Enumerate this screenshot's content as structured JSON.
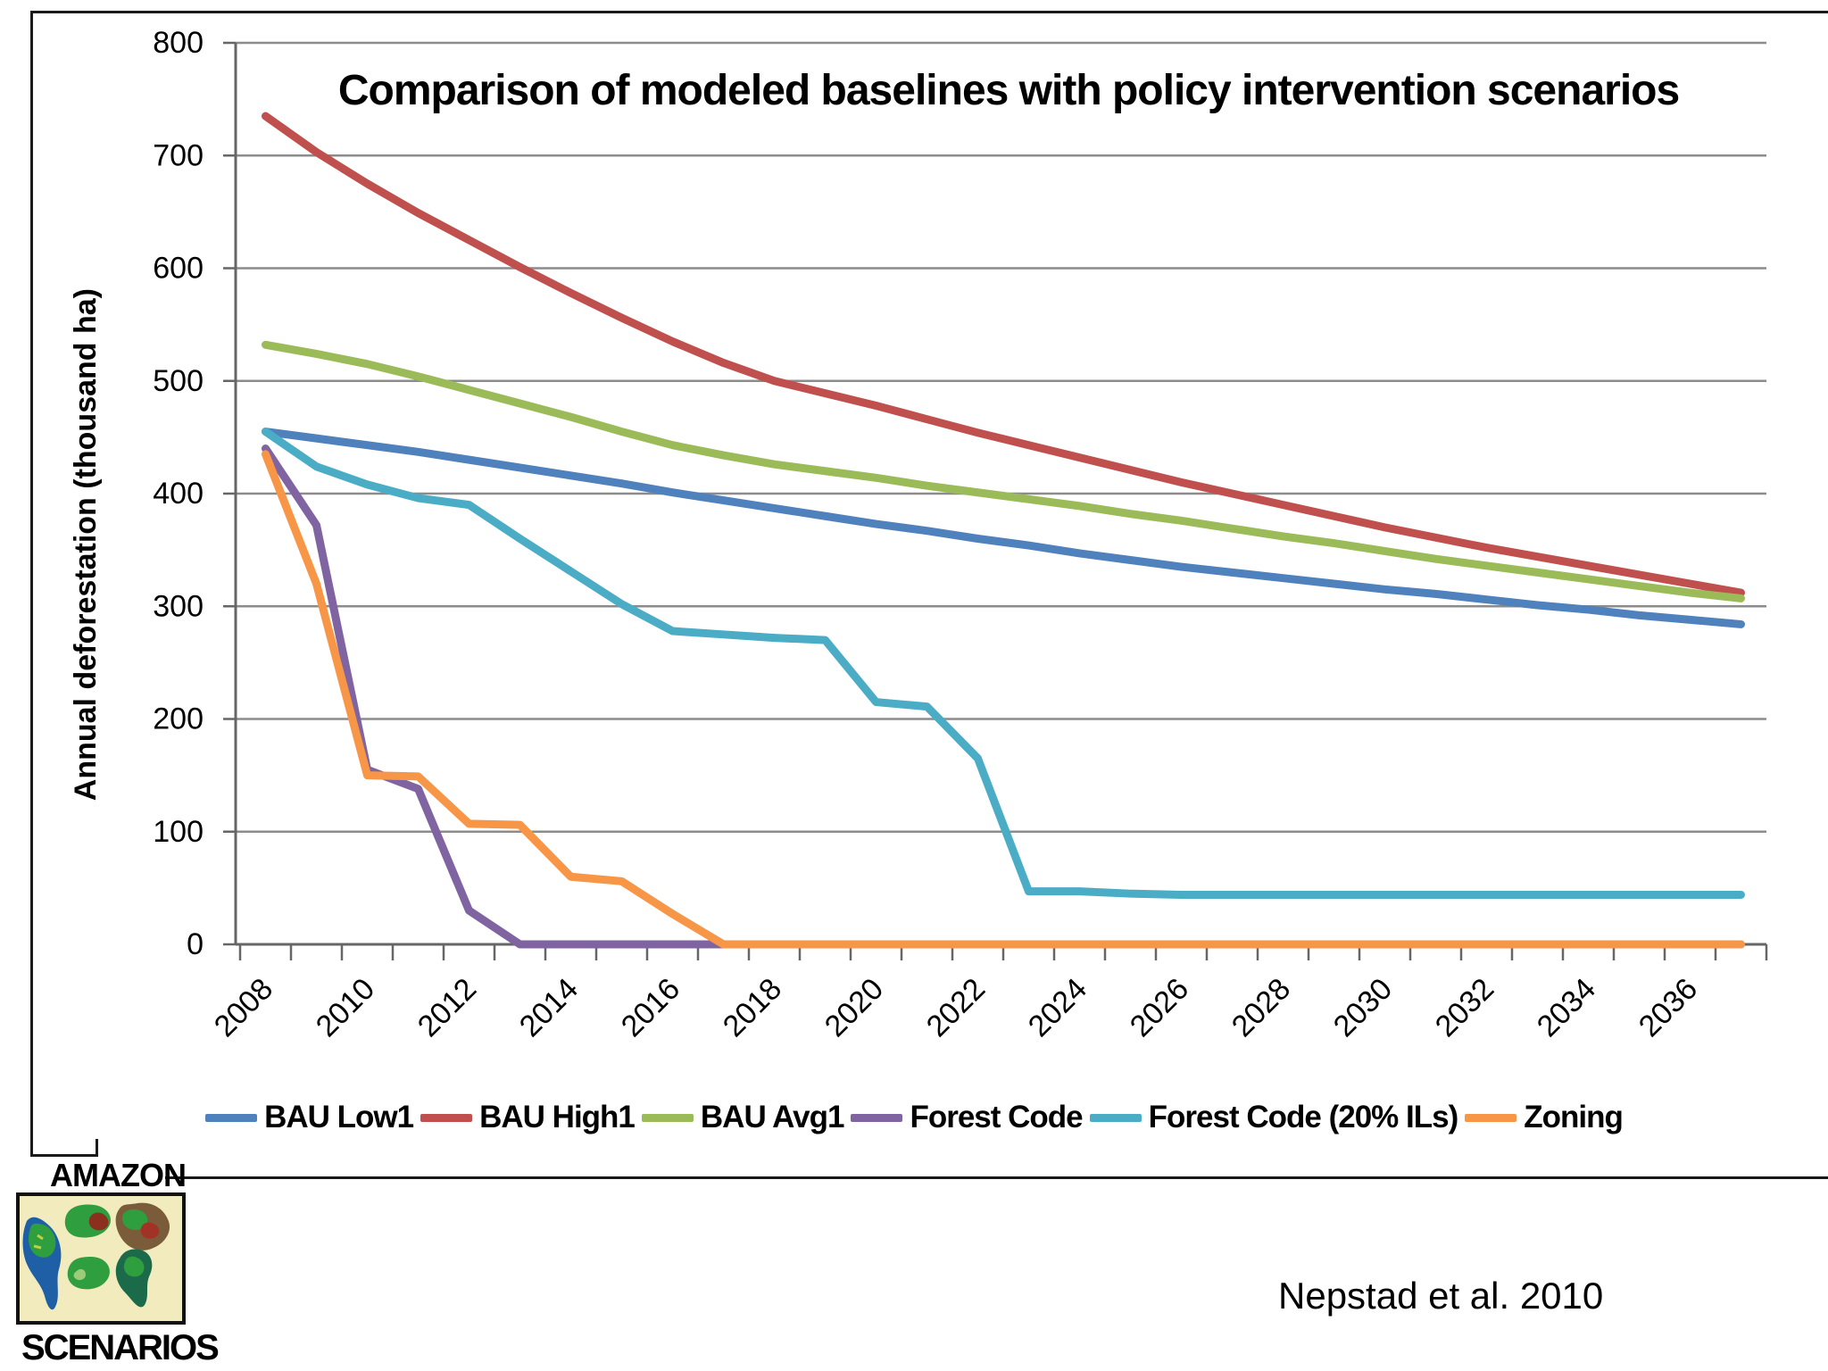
{
  "title": "Comparison of modeled baselines with policy intervention scenarios",
  "y_axis_title": "Annual deforestation (thousand ha)",
  "citation": "Nepstad et al. 2010",
  "logo": {
    "top_text": "AMAZON",
    "bottom_text": "SCENARIOS"
  },
  "chart_data": {
    "type": "line",
    "title": "Comparison of modeled baselines with policy intervention scenarios",
    "xlabel": "",
    "ylabel": "Annual deforestation (thousand ha)",
    "ylim": [
      0,
      800
    ],
    "ytick_step": 100,
    "grid": true,
    "legend_position": "bottom",
    "x": [
      2008,
      2009,
      2010,
      2011,
      2012,
      2013,
      2014,
      2015,
      2016,
      2017,
      2018,
      2019,
      2020,
      2021,
      2022,
      2023,
      2024,
      2025,
      2026,
      2027,
      2028,
      2029,
      2030,
      2031,
      2032,
      2033,
      2034,
      2035,
      2036,
      2037
    ],
    "xtick_labels": [
      "2008",
      "2010",
      "2012",
      "2014",
      "2016",
      "2018",
      "2020",
      "2022",
      "2024",
      "2026",
      "2028",
      "2030",
      "2032",
      "2034",
      "2036"
    ],
    "series": [
      {
        "name": "BAU Low1",
        "color": "#4F81BD",
        "values": [
          455,
          449,
          443,
          437,
          430,
          423,
          416,
          409,
          401,
          394,
          387,
          380,
          373,
          367,
          360,
          354,
          347,
          341,
          335,
          330,
          325,
          320,
          315,
          311,
          306,
          301,
          297,
          292,
          288,
          284
        ]
      },
      {
        "name": "BAU High1",
        "color": "#C0504D",
        "values": [
          735,
          703,
          675,
          649,
          625,
          601,
          578,
          556,
          535,
          516,
          500,
          489,
          478,
          466,
          454,
          443,
          432,
          421,
          410,
          400,
          390,
          380,
          370,
          361,
          352,
          344,
          336,
          328,
          320,
          312
        ]
      },
      {
        "name": "BAU Avg1",
        "color": "#9BBB59",
        "values": [
          532,
          524,
          515,
          504,
          492,
          480,
          468,
          455,
          443,
          434,
          426,
          420,
          414,
          407,
          401,
          395,
          389,
          382,
          376,
          369,
          362,
          356,
          349,
          342,
          336,
          330,
          324,
          318,
          312,
          307
        ]
      },
      {
        "name": "Forest Code",
        "color": "#8064A2",
        "values": [
          440,
          372,
          155,
          138,
          30,
          0,
          0,
          0,
          0,
          0,
          0,
          0,
          0,
          0,
          0,
          0,
          0,
          0,
          0,
          0,
          0,
          0,
          0,
          0,
          0,
          0,
          0,
          0,
          0,
          0
        ]
      },
      {
        "name": "Forest Code (20% ILs)",
        "color": "#4BACC6",
        "values": [
          455,
          424,
          408,
          396,
          390,
          360,
          331,
          302,
          278,
          275,
          272,
          270,
          215,
          211,
          165,
          47,
          47,
          45,
          44,
          44,
          44,
          44,
          44,
          44,
          44,
          44,
          44,
          44,
          44,
          44
        ]
      },
      {
        "name": "Zoning",
        "color": "#F79646",
        "values": [
          435,
          320,
          150,
          149,
          107,
          106,
          60,
          56,
          27,
          0,
          0,
          0,
          0,
          0,
          0,
          0,
          0,
          0,
          0,
          0,
          0,
          0,
          0,
          0,
          0,
          0,
          0,
          0,
          0,
          0
        ]
      }
    ]
  }
}
